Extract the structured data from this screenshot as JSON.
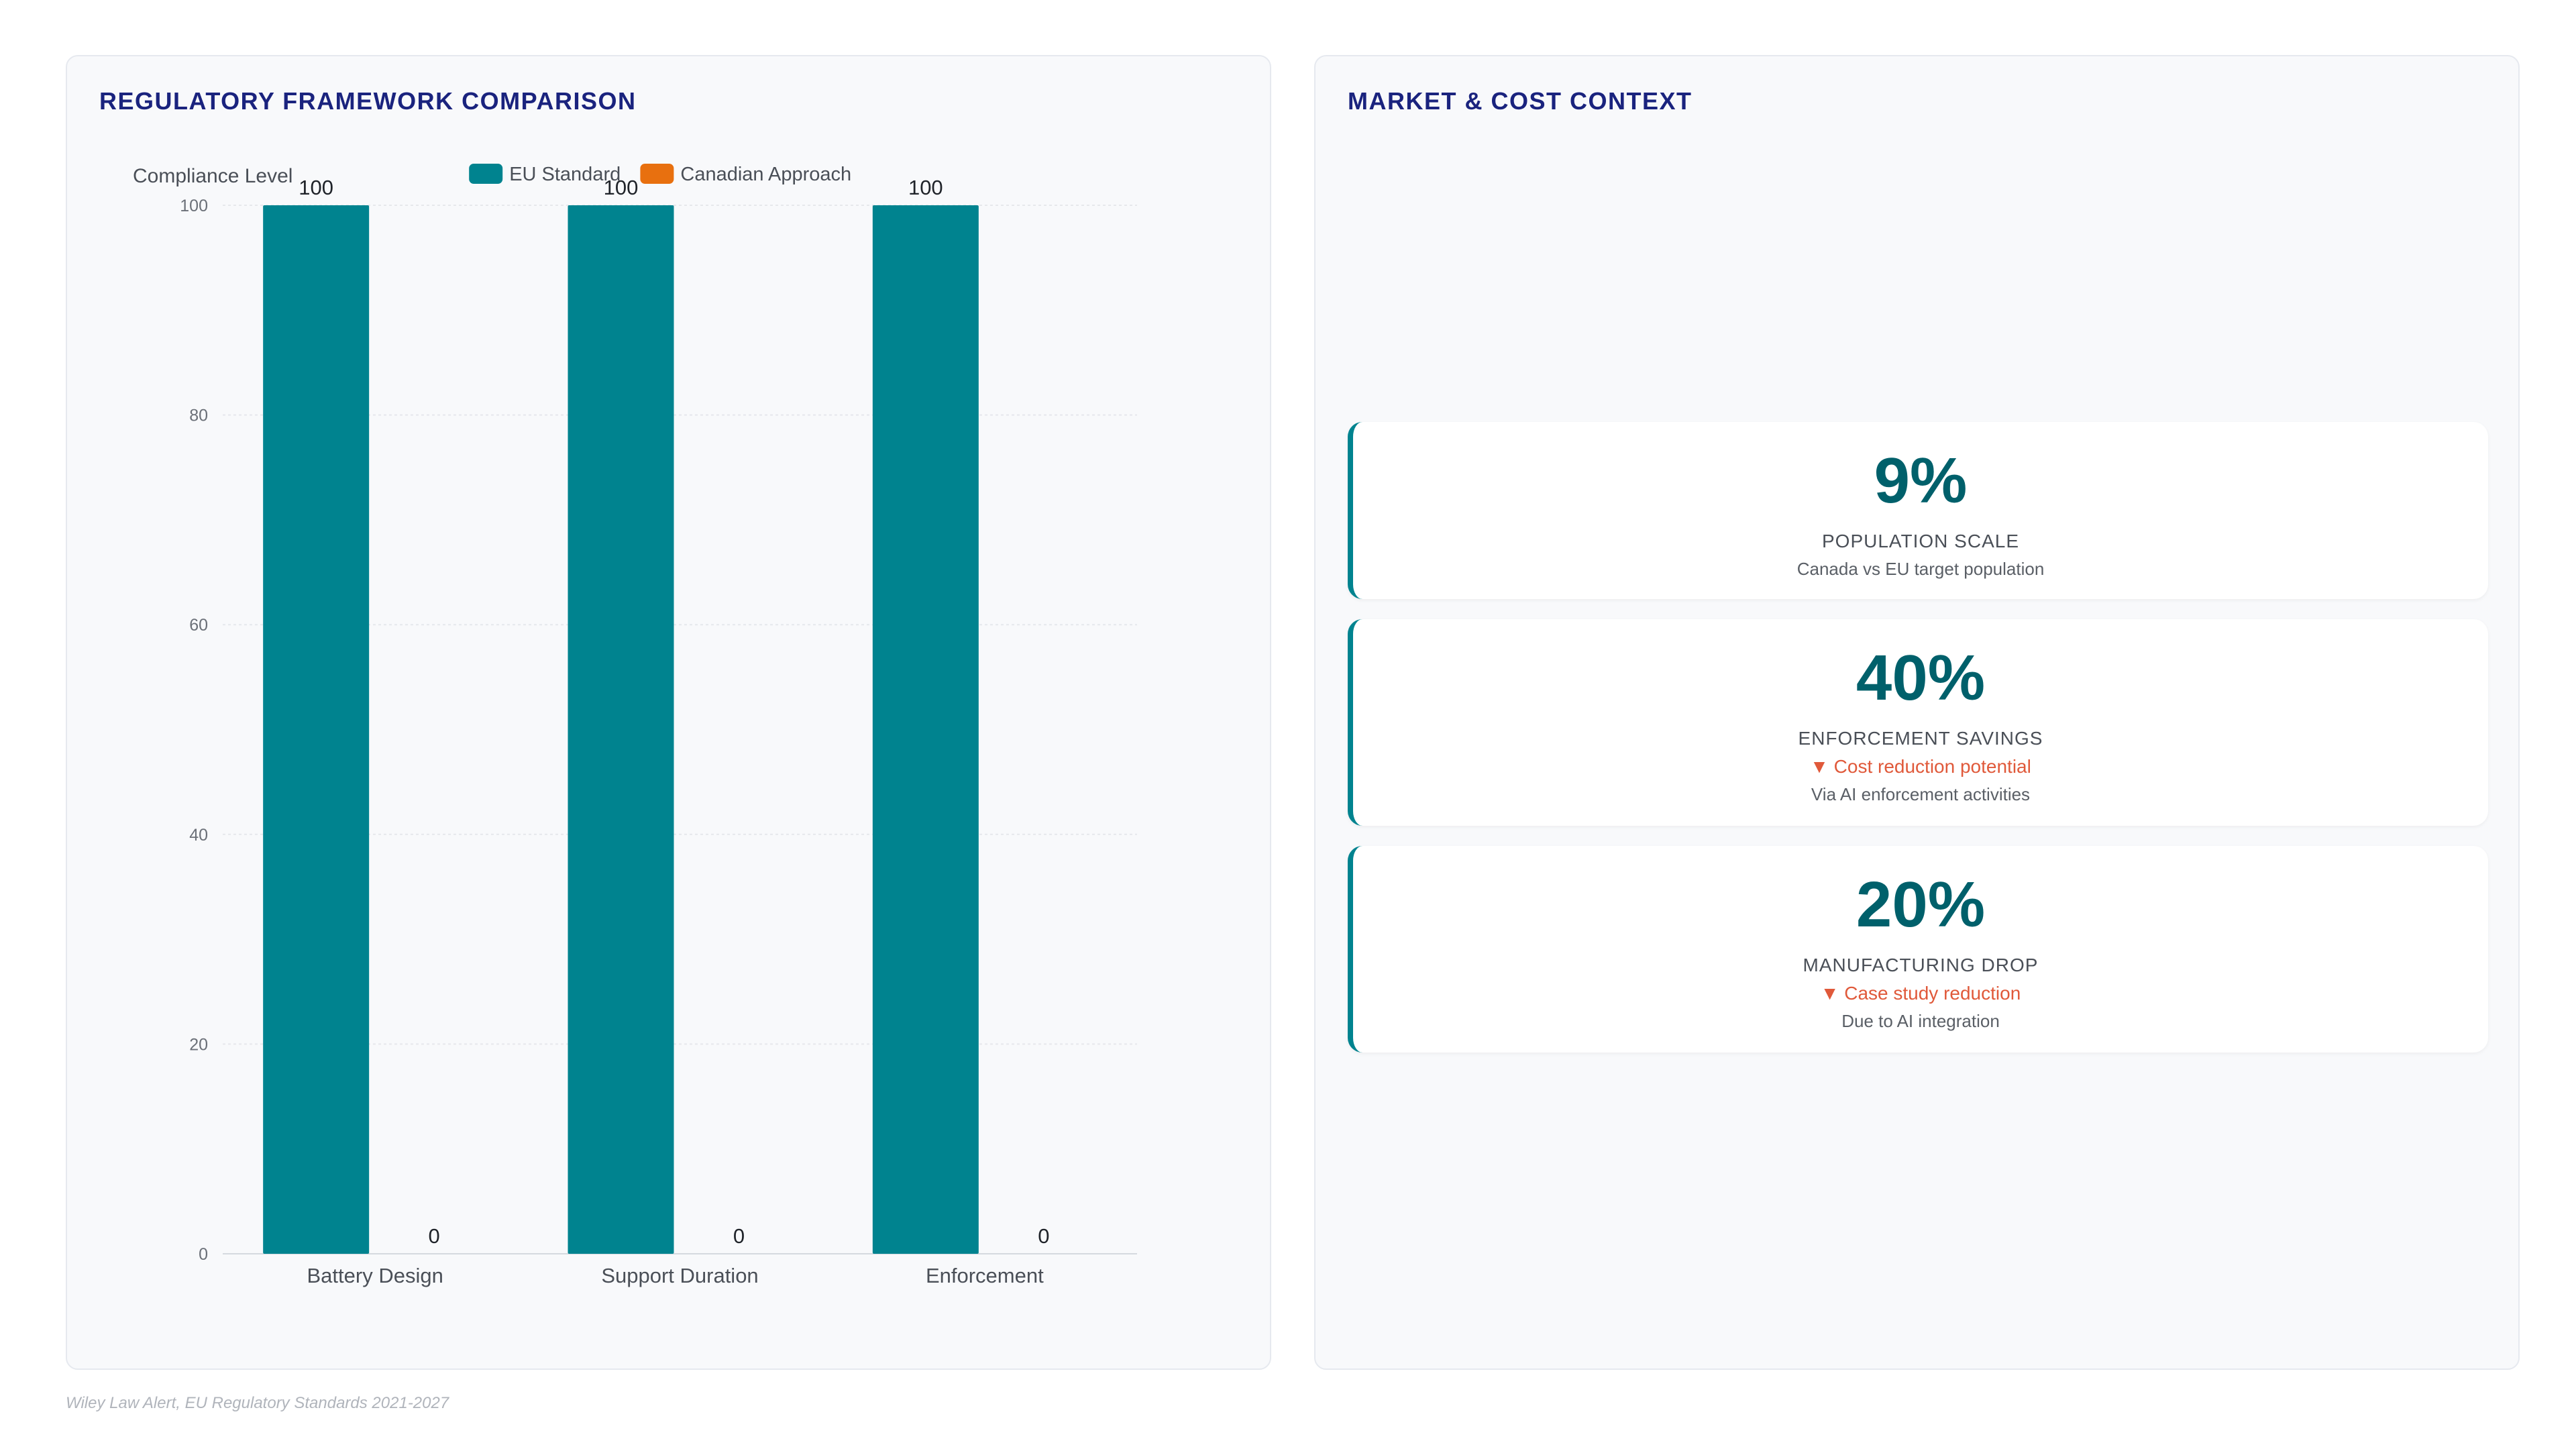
{
  "left_panel": {
    "title": "REGULATORY FRAMEWORK COMPARISON"
  },
  "right_panel": {
    "title": "MARKET & COST CONTEXT",
    "metrics": [
      {
        "value": "9%",
        "label": "POPULATION SCALE",
        "delta": "",
        "note": "Canada vs EU target population"
      },
      {
        "value": "40%",
        "label": "ENFORCEMENT SAVINGS",
        "delta": "▼ Cost reduction potential",
        "note": "Via AI enforcement activities"
      },
      {
        "value": "20%",
        "label": "MANUFACTURING DROP",
        "delta": "▼ Case study reduction",
        "note": "Due to AI integration"
      }
    ]
  },
  "source": "Wiley Law Alert, EU Regulatory Standards 2021-2027",
  "chart_data": {
    "type": "bar",
    "categories": [
      "Battery Design",
      "Support Duration",
      "Enforcement"
    ],
    "series": [
      {
        "name": "EU Standard",
        "values": [
          100,
          100,
          100
        ],
        "color": "#00838f"
      },
      {
        "name": "Canadian Approach",
        "values": [
          0,
          0,
          0
        ],
        "color": "#e8700f"
      }
    ],
    "title": "",
    "xlabel": "",
    "ylabel": "Compliance Level",
    "ylim": [
      0,
      100
    ],
    "yticks": [
      0,
      20,
      40,
      60,
      80,
      100
    ],
    "grid": true,
    "legend_position": "top-center",
    "data_labels": true
  }
}
